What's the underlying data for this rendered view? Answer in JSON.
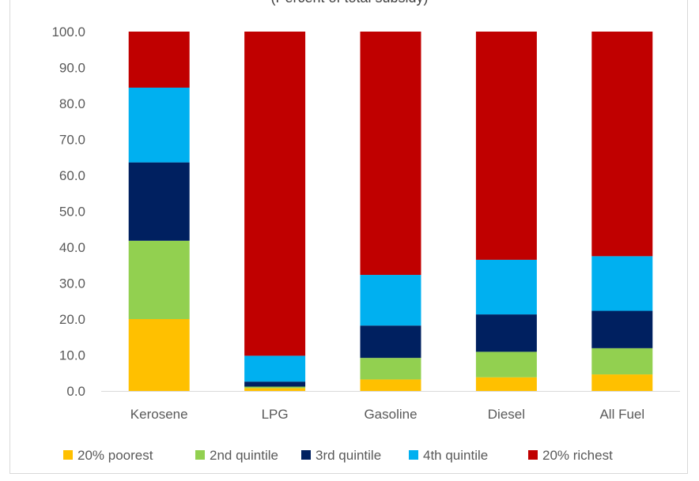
{
  "chart_data": {
    "type": "bar",
    "stacked": true,
    "title": "",
    "subtitle": "(Percent of total subsidy)",
    "xlabel": "",
    "ylabel": "",
    "categories": [
      "Kerosene",
      "LPG",
      "Gasoline",
      "Diesel",
      "All Fuel"
    ],
    "series": [
      {
        "name": "20% poorest",
        "color": "#FFC000",
        "values": [
          20.0,
          0.8,
          3.2,
          3.8,
          4.6
        ]
      },
      {
        "name": "2nd quintile",
        "color": "#92D050",
        "values": [
          21.8,
          0.4,
          6.0,
          7.1,
          7.3
        ]
      },
      {
        "name": "3rd quintile",
        "color": "#002060",
        "values": [
          21.8,
          1.4,
          9.0,
          10.4,
          10.4
        ]
      },
      {
        "name": "4th quintile",
        "color": "#00B0F0",
        "values": [
          20.8,
          7.2,
          14.1,
          15.2,
          15.2
        ]
      },
      {
        "name": "20% richest",
        "color": "#C00000",
        "values": [
          15.6,
          90.2,
          67.7,
          63.5,
          62.5
        ]
      }
    ],
    "ylim": [
      0,
      100
    ],
    "yticks": [
      "0.0",
      "10.0",
      "20.0",
      "30.0",
      "40.0",
      "50.0",
      "60.0",
      "70.0",
      "80.0",
      "90.0",
      "100.0"
    ],
    "grid": false,
    "legend_position": "bottom"
  }
}
